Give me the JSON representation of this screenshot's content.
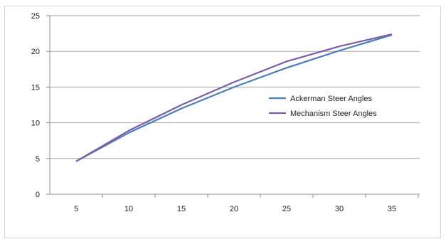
{
  "chart_data": {
    "type": "line",
    "x": [
      5,
      10,
      15,
      20,
      25,
      30,
      35
    ],
    "series": [
      {
        "name": "Ackerman Steer Angles",
        "color": "#4a7ebb",
        "values": [
          4.6,
          8.6,
          12.0,
          15.0,
          17.7,
          20.1,
          22.3
        ]
      },
      {
        "name": "Mechanism Steer Angles",
        "color": "#7b5ea7",
        "values": [
          4.6,
          8.9,
          12.5,
          15.7,
          18.6,
          20.7,
          22.4
        ]
      }
    ],
    "yticks": [
      "0",
      "5",
      "10",
      "15",
      "20",
      "25"
    ],
    "xticks": [
      "5",
      "10",
      "15",
      "20",
      "25",
      "30",
      "35"
    ],
    "ylim": [
      0,
      25
    ],
    "grid": "horizontal",
    "legend": "right"
  }
}
